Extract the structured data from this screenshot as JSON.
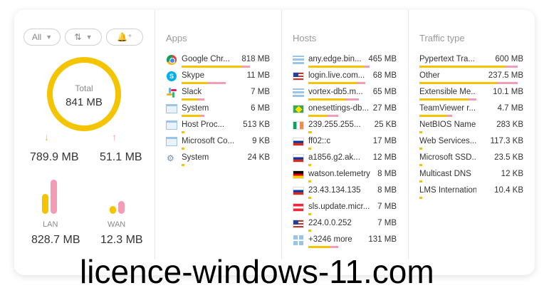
{
  "filters": {
    "all_label": "All",
    "sort_icon": "sort-arrows-icon",
    "alert_icon": "bell-plus-icon"
  },
  "summary": {
    "total_label": "Total",
    "total_value": "841 MB",
    "download_value": "789.9 MB",
    "upload_value": "51.1 MB",
    "lan_label": "LAN",
    "lan_value": "828.7 MB",
    "wan_label": "WAN",
    "wan_value": "12.3 MB"
  },
  "colors": {
    "download": "#f5c400",
    "upload": "#f29cb6",
    "accent": "#f5c400"
  },
  "apps": {
    "title": "Apps",
    "rows": [
      {
        "name": "Google Chr...",
        "size": "818 MB",
        "icon": "chrome-icon",
        "down": 0.68,
        "up": 0.1
      },
      {
        "name": "Skype",
        "size": "11 MB",
        "icon": "skype-icon",
        "down": 0.3,
        "up": 0.2
      },
      {
        "name": "Slack",
        "size": "7 MB",
        "icon": "slack-icon",
        "down": 0.18,
        "up": 0.08
      },
      {
        "name": "System",
        "size": "6 MB",
        "icon": "window-icon",
        "down": 0.22,
        "up": 0.04
      },
      {
        "name": "Host Proc...",
        "size": "513 KB",
        "icon": "window-icon",
        "down": 0.03,
        "up": 0.0
      },
      {
        "name": "Microsoft Co...",
        "size": "9 KB",
        "icon": "window-icon",
        "down": 0.03,
        "up": 0.0
      },
      {
        "name": "System",
        "size": "24 KB",
        "icon": "system-process-icon",
        "down": 0.03,
        "up": 0.0
      }
    ]
  },
  "hosts": {
    "title": "Hosts",
    "rows": [
      {
        "name": "any.edge.bin...",
        "size": "465 MB",
        "icon": "server-icon",
        "down": 0.64,
        "up": 0.06
      },
      {
        "name": "login.live.com...",
        "size": "68 MB",
        "icon": "flag-us-icon",
        "down": 0.55,
        "up": 0.1
      },
      {
        "name": "vortex-db5.m...",
        "size": "65 MB",
        "icon": "server-icon",
        "down": 0.42,
        "up": 0.15
      },
      {
        "name": "onesettings-db...",
        "size": "27 MB",
        "icon": "flag-br-icon",
        "down": 0.22,
        "up": 0.12
      },
      {
        "name": "239.255.255...",
        "size": "25 KB",
        "icon": "flag-ie-icon",
        "down": 0.04,
        "up": 0.0
      },
      {
        "name": "ff02::c",
        "size": "17 MB",
        "icon": "flag-ru-icon",
        "down": 0.03,
        "up": 0.0
      },
      {
        "name": "a1856.g2.ak...",
        "size": "12 MB",
        "icon": "flag-ru-icon",
        "down": 0.03,
        "up": 0.0
      },
      {
        "name": "watson.telemetry",
        "size": "8 MB",
        "icon": "flag-de-icon",
        "down": 0.03,
        "up": 0.0
      },
      {
        "name": "23.43.134.135",
        "size": "8 MB",
        "icon": "flag-ru-icon",
        "down": 0.03,
        "up": 0.0
      },
      {
        "name": "sls.update.micr...",
        "size": "7 MB",
        "icon": "flag-at-icon",
        "down": 0.03,
        "up": 0.0
      },
      {
        "name": "224.0.0.252",
        "size": "7 MB",
        "icon": "flag-us-icon",
        "down": 0.03,
        "up": 0.0
      },
      {
        "name": "+3246 more",
        "size": "131 MB",
        "icon": "grid-icon",
        "down": 0.24,
        "up": 0.1
      }
    ]
  },
  "traffic": {
    "title": "Traffic type",
    "rows": [
      {
        "name": "Pypertext Tra...",
        "size": "600 MB",
        "down": 0.88,
        "up": 0.12
      },
      {
        "name": "Other",
        "size": "237.5 MB",
        "down": 0.78,
        "up": 0.22
      },
      {
        "name": "Extensible Me...",
        "size": "10.1 MB",
        "down": 0.5,
        "up": 0.08
      },
      {
        "name": "TeamViewer r...",
        "size": "4.7 MB",
        "down": 0.28,
        "up": 0.05
      },
      {
        "name": "NetBIOS Name...",
        "size": "283 KB",
        "down": 0.03,
        "up": 0.0
      },
      {
        "name": "Web Services...",
        "size": "117.3 KB",
        "down": 0.03,
        "up": 0.0
      },
      {
        "name": "Microsoft SSD...",
        "size": "23.5 KB",
        "down": 0.03,
        "up": 0.0
      },
      {
        "name": "Multicast DNS",
        "size": "12 KB",
        "down": 0.03,
        "up": 0.0
      },
      {
        "name": "LMS Internation...",
        "size": "10.4 KB",
        "down": 0.03,
        "up": 0.0
      }
    ]
  },
  "watermark": "licence-windows-11.com"
}
